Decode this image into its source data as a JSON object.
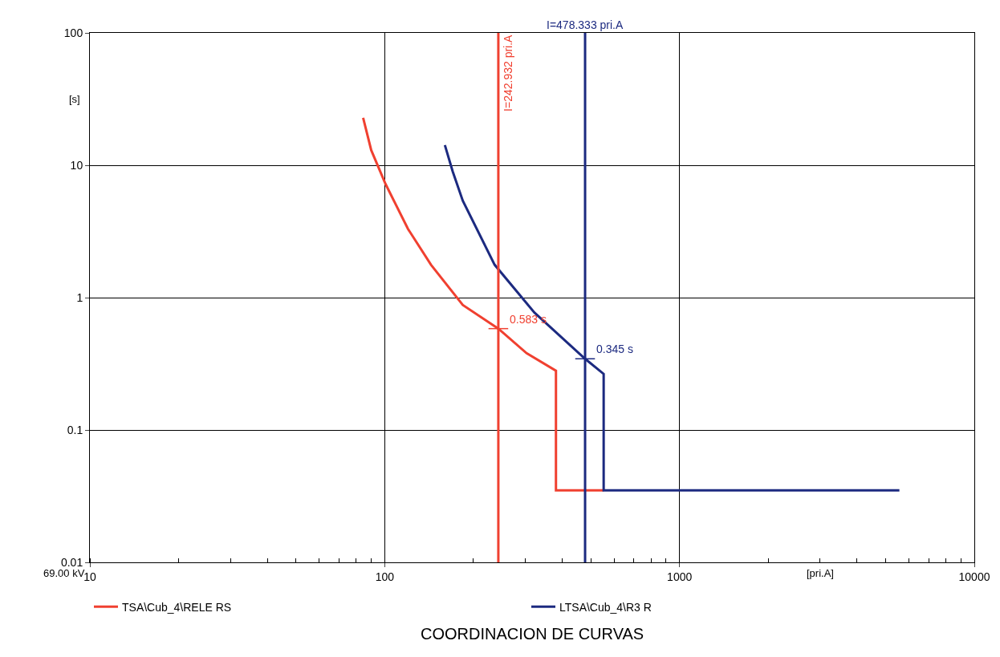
{
  "chart_data": {
    "type": "line",
    "title": "COORDINACION DE CURVAS",
    "xlabel": "[pri.A]",
    "ylabel": "[s]",
    "series": [
      {
        "name": "TSA\\Cub_4\\RELE RS",
        "color": "#f04030",
        "x": [
          84.5,
          90,
          100.7,
          120,
          143.6,
          184,
          242.932,
          303,
          381,
          381,
          553
        ],
        "values": [
          22.8,
          13,
          7.2,
          3.3,
          1.77,
          0.88,
          0.583,
          0.38,
          0.28,
          0.035,
          0.035
        ]
      },
      {
        "name": "LTSA\\Cub_4\\R3 R",
        "color": "#1c2a80",
        "x": [
          160,
          170,
          184,
          236,
          322,
          478.333,
          553,
          553,
          5570
        ],
        "values": [
          14.2,
          9,
          5.4,
          1.77,
          0.77,
          0.345,
          0.265,
          0.035,
          0.035
        ]
      }
    ],
    "xlim": [
      10,
      10000
    ],
    "ylim": [
      0.01,
      100
    ],
    "log": "xy",
    "xticks": [
      10,
      100,
      1000,
      10000
    ],
    "yticks": [
      0.01,
      0.1,
      1,
      10,
      100
    ],
    "grid": true,
    "legend": "bottom",
    "marker": "none",
    "line_style": "solid",
    "ref_lines": [
      {
        "axis": "x",
        "value": 242.932,
        "label": "I=242.932 pri.A",
        "color": "#f04030"
      },
      {
        "axis": "x",
        "value": 478.333,
        "label": "I=478.333 pri.A",
        "color": "#1c2a80"
      }
    ],
    "annotations": [
      {
        "text": "0.583 s",
        "x": 242.932,
        "y": 0.583
      },
      {
        "text": "0.345 s",
        "x": 478.333,
        "y": 0.345
      },
      "69.00 kV"
    ]
  }
}
